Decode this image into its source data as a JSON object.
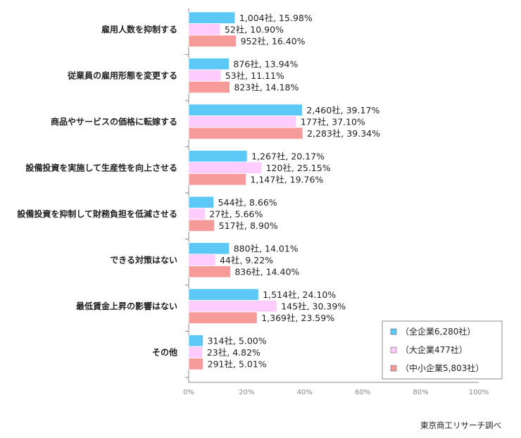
{
  "chart_data": {
    "type": "bar",
    "orientation": "horizontal",
    "categories": [
      "雇用人数を抑制する",
      "従業員の雇用形態を変更する",
      "商品やサービスの価格に転嫁する",
      "設備投資を実施して生産性を向上させる",
      "設備投資を抑制して財務負担を低減させる",
      "できる対策はない",
      "最低賃金上昇の影響はない",
      "その他"
    ],
    "series": [
      {
        "name": "（全企業6,280社）",
        "color": "#5bc8f5",
        "values": [
          15.98,
          13.94,
          39.17,
          20.17,
          8.66,
          14.01,
          24.1,
          5.0
        ],
        "labels": [
          "1,004社, 15.98%",
          "876社, 13.94%",
          "2,460社, 39.17%",
          "1,267社, 20.17%",
          "544社, 8.66%",
          "880社, 14.01%",
          "1,514社, 24.10%",
          "314社, 5.00%"
        ]
      },
      {
        "name": "（大企業477社）",
        "color": "#ffccff",
        "values": [
          10.9,
          11.11,
          37.1,
          25.15,
          5.66,
          9.22,
          30.39,
          4.82
        ],
        "labels": [
          "52社, 10.90%",
          "53社, 11.11%",
          "177社, 37.10%",
          "120社, 25.15%",
          "27社, 5.66%",
          "44社, 9.22%",
          "145社, 30.39%",
          "23社, 4.82%"
        ]
      },
      {
        "name": "（中小企業5,803社）",
        "color": "#f79a9a",
        "values": [
          16.4,
          14.18,
          39.34,
          19.76,
          8.9,
          14.4,
          23.59,
          5.01
        ],
        "labels": [
          "952社, 16.40%",
          "823社, 14.18%",
          "2,283社, 39.34%",
          "1,147社, 19.76%",
          "517社, 8.90%",
          "836社, 14.40%",
          "1,369社, 23.59%",
          "291社, 5.01%"
        ]
      }
    ],
    "xlim": [
      0,
      100
    ],
    "xticks": [
      "0%",
      "20%",
      "40%",
      "60%",
      "80%",
      "100%"
    ],
    "legend_placement": "bottom-right",
    "grid": false
  },
  "source_note": "東京商工リサーチ調べ"
}
